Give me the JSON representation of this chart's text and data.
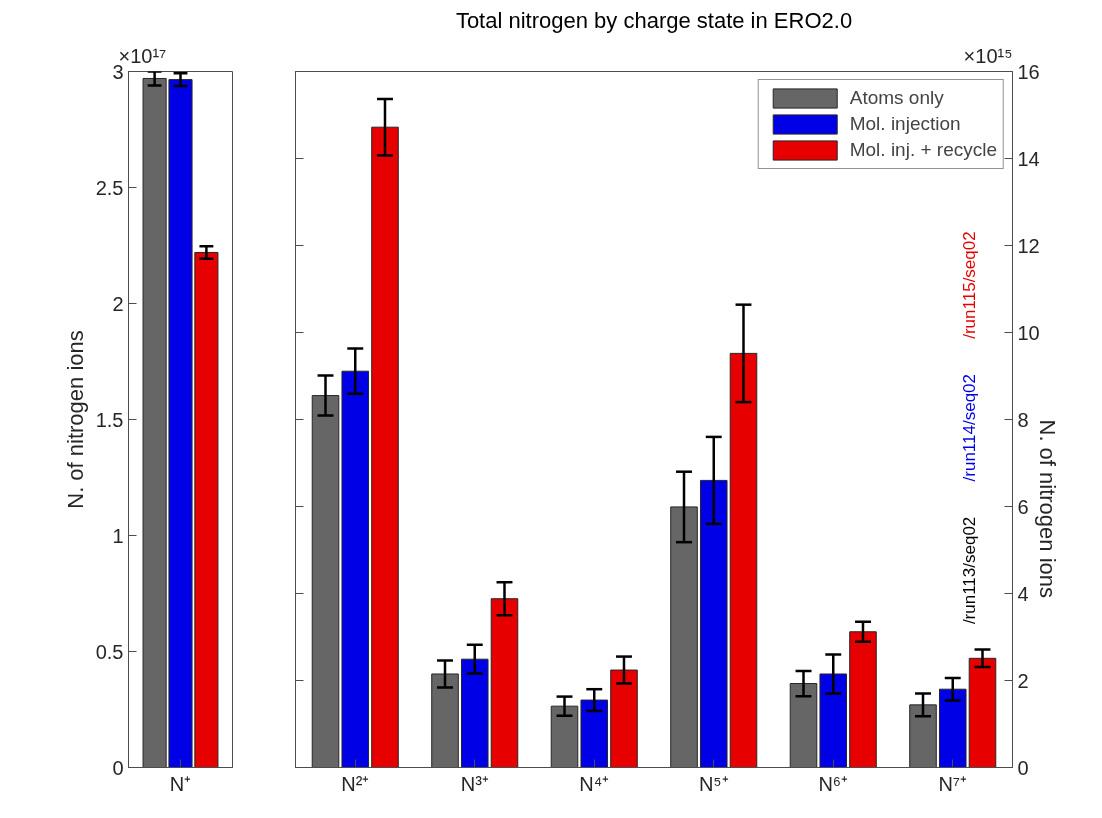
{
  "chart_data": [
    {
      "type": "bar",
      "ylabel": "N. of nitrogen ions",
      "categories": [
        "N⁺"
      ],
      "ylim": [
        0,
        3
      ],
      "yticks": [
        0,
        0.5,
        1,
        1.5,
        2,
        2.5,
        3
      ],
      "grid": false,
      "legend": false,
      "annotations": [
        "×10¹⁷"
      ],
      "series": [
        {
          "color": "#666666",
          "values": [
            2.97
          ],
          "errors": [
            0.03
          ]
        },
        {
          "color": "#0000e6",
          "values": [
            2.965
          ],
          "errors": [
            0.027
          ]
        },
        {
          "color": "#e60000",
          "values": [
            2.22
          ],
          "errors": [
            0.027
          ]
        }
      ]
    },
    {
      "type": "bar",
      "title": "Total nitrogen by charge state in ERO2.0",
      "y2label": "N. of nitrogen ions",
      "categories": [
        "N²⁺",
        "N³⁺",
        "N⁴⁺",
        "N⁵⁺",
        "N⁶⁺",
        "N⁷⁺"
      ],
      "y2lim": [
        0,
        16
      ],
      "y2ticks": [
        0,
        2,
        4,
        6,
        8,
        10,
        12,
        14,
        16
      ],
      "grid": false,
      "legend": "top right",
      "annotations": [
        "×10¹⁵",
        "/run113/seq02",
        "/run114/seq02",
        "/run115/seq02"
      ],
      "series": [
        {
          "name": "Atoms only",
          "color": "#666666",
          "axis": "y2",
          "values": [
            8.55,
            2.15,
            1.41,
            5.99,
            1.93,
            1.44
          ],
          "errors": [
            0.46,
            0.31,
            0.22,
            0.81,
            0.29,
            0.26
          ]
        },
        {
          "name": "Mol. injection",
          "color": "#0000e6",
          "axis": "y2",
          "values": [
            9.11,
            2.49,
            1.55,
            6.6,
            2.15,
            1.8
          ],
          "errors": [
            0.52,
            0.33,
            0.25,
            1.0,
            0.45,
            0.26
          ]
        },
        {
          "name": "Mol. inj. + recycle",
          "color": "#e60000",
          "axis": "y2",
          "values": [
            14.72,
            3.88,
            2.24,
            9.52,
            3.12,
            2.51
          ],
          "errors": [
            0.65,
            0.38,
            0.31,
            1.12,
            0.23,
            0.2
          ]
        }
      ]
    }
  ]
}
